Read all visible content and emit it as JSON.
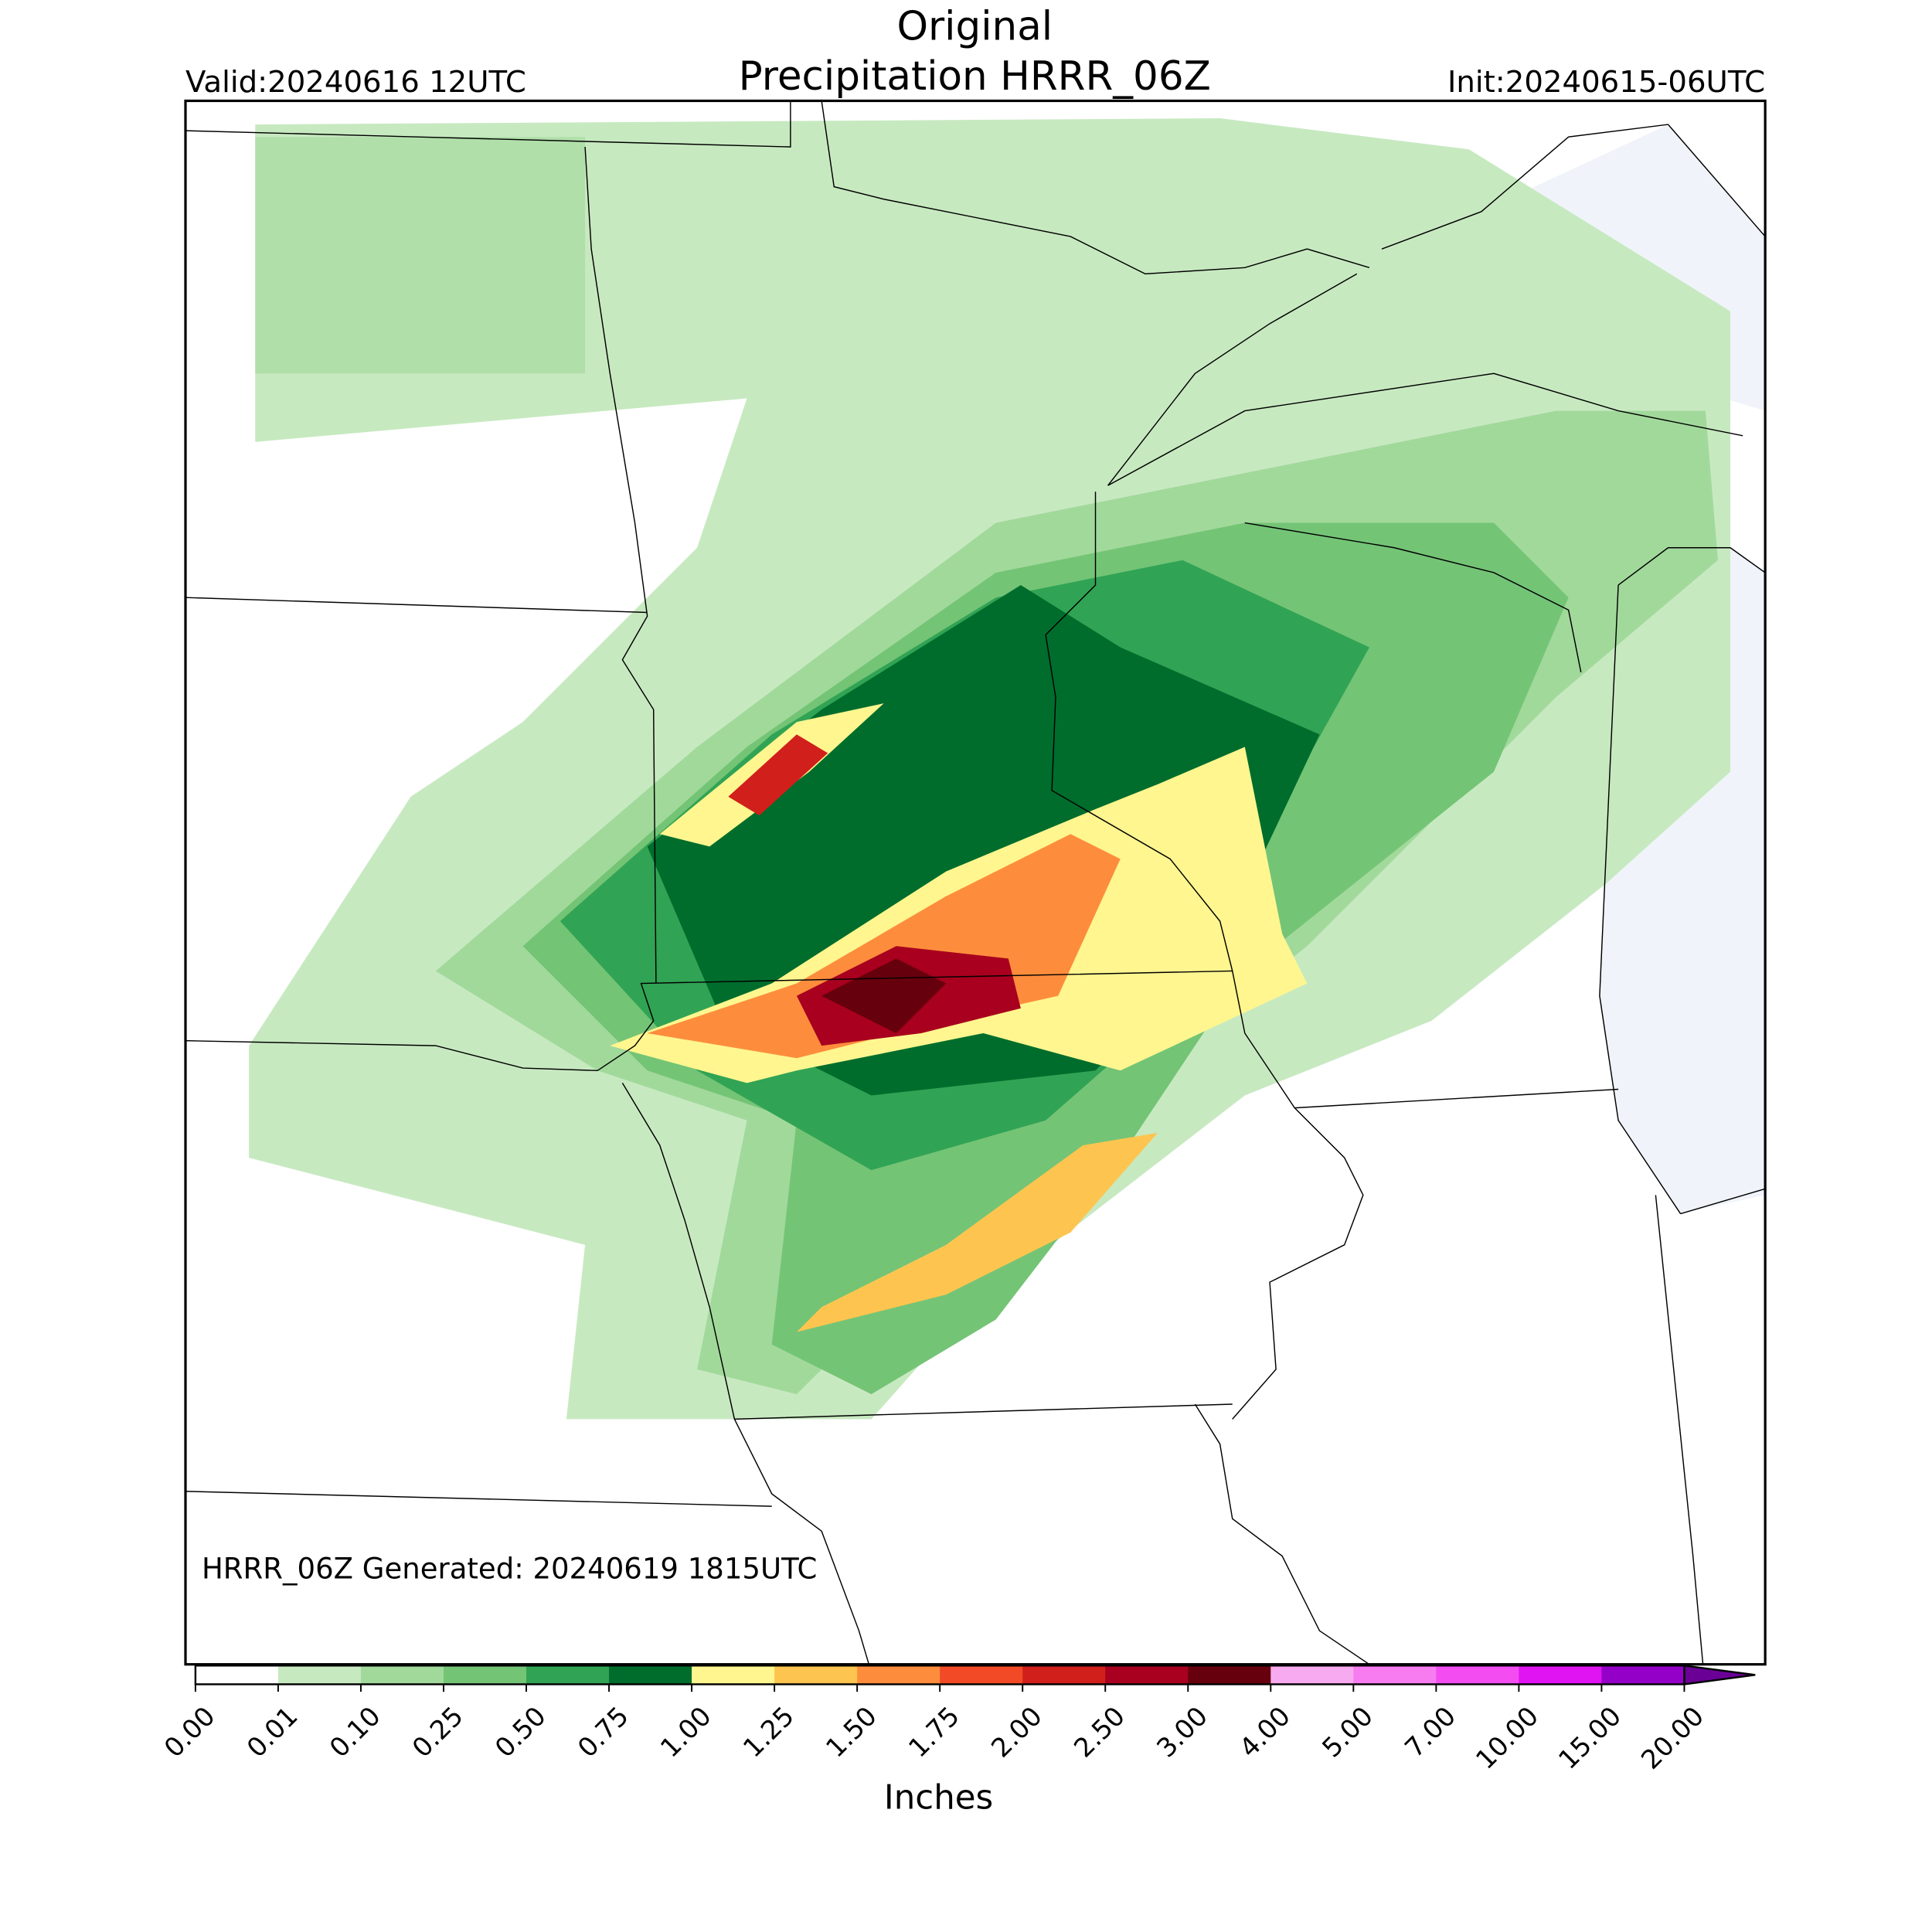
{
  "header": {
    "title_line1": "Original",
    "title_line2": "Precipitation HRRR_06Z",
    "valid": "Valid:20240616 12UTC",
    "init": "Init:20240615-06UTC"
  },
  "map": {
    "footer": "HRRR_06Z Generated: 20240619 1815UTC"
  },
  "colorbar": {
    "label": "Inches",
    "ticks": [
      {
        "value": 0,
        "label": "0.00"
      },
      {
        "value": 0.01,
        "label": "0.01"
      },
      {
        "value": 0.1,
        "label": "0.10"
      },
      {
        "value": 0.25,
        "label": "0.25"
      },
      {
        "value": 0.5,
        "label": "0.50"
      },
      {
        "value": 0.75,
        "label": "0.75"
      },
      {
        "value": 1,
        "label": "1.00"
      },
      {
        "value": 1.25,
        "label": "1.25"
      },
      {
        "value": 1.5,
        "label": "1.50"
      },
      {
        "value": 1.75,
        "label": "1.75"
      },
      {
        "value": 2,
        "label": "2.00"
      },
      {
        "value": 2.5,
        "label": "2.50"
      },
      {
        "value": 3,
        "label": "3.00"
      },
      {
        "value": 4,
        "label": "4.00"
      },
      {
        "value": 5,
        "label": "5.00"
      },
      {
        "value": 7,
        "label": "7.00"
      },
      {
        "value": 10,
        "label": "10.00"
      },
      {
        "value": 15,
        "label": "15.00"
      },
      {
        "value": 20,
        "label": "20.00"
      }
    ],
    "colors": [
      "#ffffff",
      "#c7e9c0",
      "#a1d99b",
      "#74c476",
      "#31a354",
      "#006d2c",
      "#fff68f",
      "#fdc54f",
      "#fd8d3c",
      "#f24a26",
      "#d11f1c",
      "#a8001e",
      "#67000d",
      "#f8aaf0",
      "#f67cf0",
      "#f34df2",
      "#e013f2",
      "#9400c8"
    ],
    "extend_color": "#6a0096"
  }
}
